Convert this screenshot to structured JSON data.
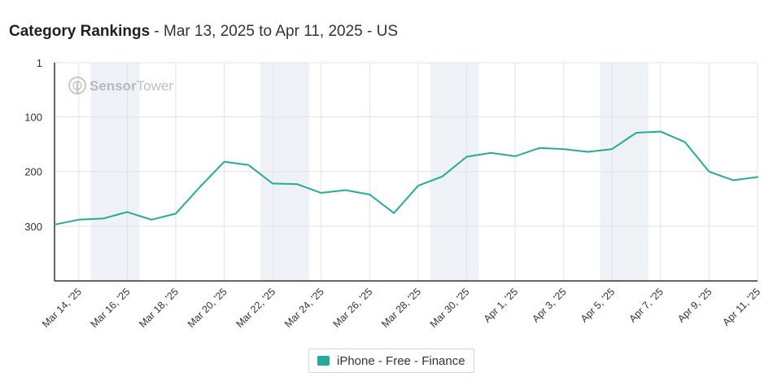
{
  "header": {
    "title": "Category Rankings",
    "subtitle": " - Mar 13, 2025 to Apr 11, 2025 - US"
  },
  "watermark": {
    "text_a": "Sensor",
    "text_b": "Tower"
  },
  "colors": {
    "series": "#26ab99",
    "weekend_band": "#eef1f5",
    "grid": "#e3e3e3",
    "axis": "#333333"
  },
  "chart_data": {
    "type": "line",
    "title": "Category Rankings",
    "y_reversed": true,
    "ylim": [
      1,
      400
    ],
    "yticks": [
      1,
      100,
      200,
      300
    ],
    "x": [
      "Mar 13, '25",
      "Mar 14, '25",
      "Mar 15, '25",
      "Mar 16, '25",
      "Mar 17, '25",
      "Mar 18, '25",
      "Mar 19, '25",
      "Mar 20, '25",
      "Mar 21, '25",
      "Mar 22, '25",
      "Mar 23, '25",
      "Mar 24, '25",
      "Mar 25, '25",
      "Mar 26, '25",
      "Mar 27, '25",
      "Mar 28, '25",
      "Mar 29, '25",
      "Mar 30, '25",
      "Mar 31, '25",
      "Apr 1, '25",
      "Apr 2, '25",
      "Apr 3, '25",
      "Apr 4, '25",
      "Apr 5, '25",
      "Apr 6, '25",
      "Apr 7, '25",
      "Apr 8, '25",
      "Apr 9, '25",
      "Apr 10, '25",
      "Apr 11, '25"
    ],
    "xtick_labels": [
      "Mar 14, '25",
      "Mar 16, '25",
      "Mar 18, '25",
      "Mar 20, '25",
      "Mar 22, '25",
      "Mar 24, '25",
      "Mar 26, '25",
      "Mar 28, '25",
      "Mar 30, '25",
      "Apr 1, '25",
      "Apr 3, '25",
      "Apr 5, '25",
      "Apr 7, '25",
      "Apr 9, '25",
      "Apr 11, '25"
    ],
    "weekend_bands": [
      [
        "Mar 15, '25",
        "Mar 16, '25"
      ],
      [
        "Mar 22, '25",
        "Mar 23, '25"
      ],
      [
        "Mar 29, '25",
        "Mar 30, '25"
      ],
      [
        "Apr 5, '25",
        "Apr 6, '25"
      ]
    ],
    "series": [
      {
        "name": "iPhone - Free - Finance",
        "values": [
          297,
          288,
          286,
          274,
          288,
          277,
          228,
          182,
          188,
          222,
          223,
          239,
          234,
          242,
          276,
          226,
          209,
          173,
          166,
          172,
          157,
          159,
          164,
          159,
          129,
          127,
          146,
          200,
          216,
          210
        ]
      }
    ]
  }
}
